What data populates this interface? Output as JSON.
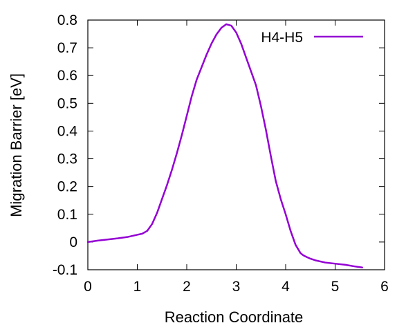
{
  "chart_data": {
    "type": "line",
    "title": "",
    "xlabel": "Reaction Coordinate",
    "ylabel": "Migration Barrier [eV]",
    "xlim": [
      0,
      6
    ],
    "ylim": [
      -0.1,
      0.8
    ],
    "x_ticks": [
      0,
      1,
      2,
      3,
      4,
      5,
      6
    ],
    "x_tick_labels": [
      "0",
      "1",
      "2",
      "3",
      "4",
      "5",
      "6"
    ],
    "y_ticks": [
      -0.1,
      0,
      0.1,
      0.2,
      0.3,
      0.4,
      0.5,
      0.6,
      0.7,
      0.8
    ],
    "y_tick_labels": [
      "-0.1",
      "0",
      "0.1",
      "0.2",
      "0.3",
      "0.4",
      "0.5",
      "0.6",
      "0.7",
      "0.8"
    ],
    "grid": false,
    "legend_position": "top-right",
    "series": [
      {
        "name": "H4-H5",
        "color": "#9400d3",
        "x": [
          0.0,
          0.2,
          0.4,
          0.6,
          0.8,
          1.0,
          1.1,
          1.2,
          1.3,
          1.4,
          1.5,
          1.6,
          1.7,
          1.8,
          1.9,
          2.0,
          2.1,
          2.2,
          2.3,
          2.4,
          2.5,
          2.6,
          2.7,
          2.8,
          2.9,
          3.0,
          3.1,
          3.2,
          3.3,
          3.4,
          3.5,
          3.6,
          3.7,
          3.8,
          3.9,
          4.0,
          4.1,
          4.2,
          4.3,
          4.35,
          4.4,
          4.5,
          4.6,
          4.8,
          5.0,
          5.2,
          5.4,
          5.55
        ],
        "y": [
          0.0,
          0.005,
          0.009,
          0.013,
          0.018,
          0.026,
          0.03,
          0.04,
          0.065,
          0.105,
          0.155,
          0.205,
          0.26,
          0.32,
          0.385,
          0.455,
          0.525,
          0.585,
          0.63,
          0.675,
          0.715,
          0.748,
          0.772,
          0.785,
          0.78,
          0.755,
          0.715,
          0.665,
          0.615,
          0.565,
          0.49,
          0.405,
          0.31,
          0.22,
          0.155,
          0.1,
          0.04,
          -0.01,
          -0.04,
          -0.047,
          -0.052,
          -0.06,
          -0.066,
          -0.074,
          -0.078,
          -0.082,
          -0.088,
          -0.092
        ]
      }
    ]
  }
}
